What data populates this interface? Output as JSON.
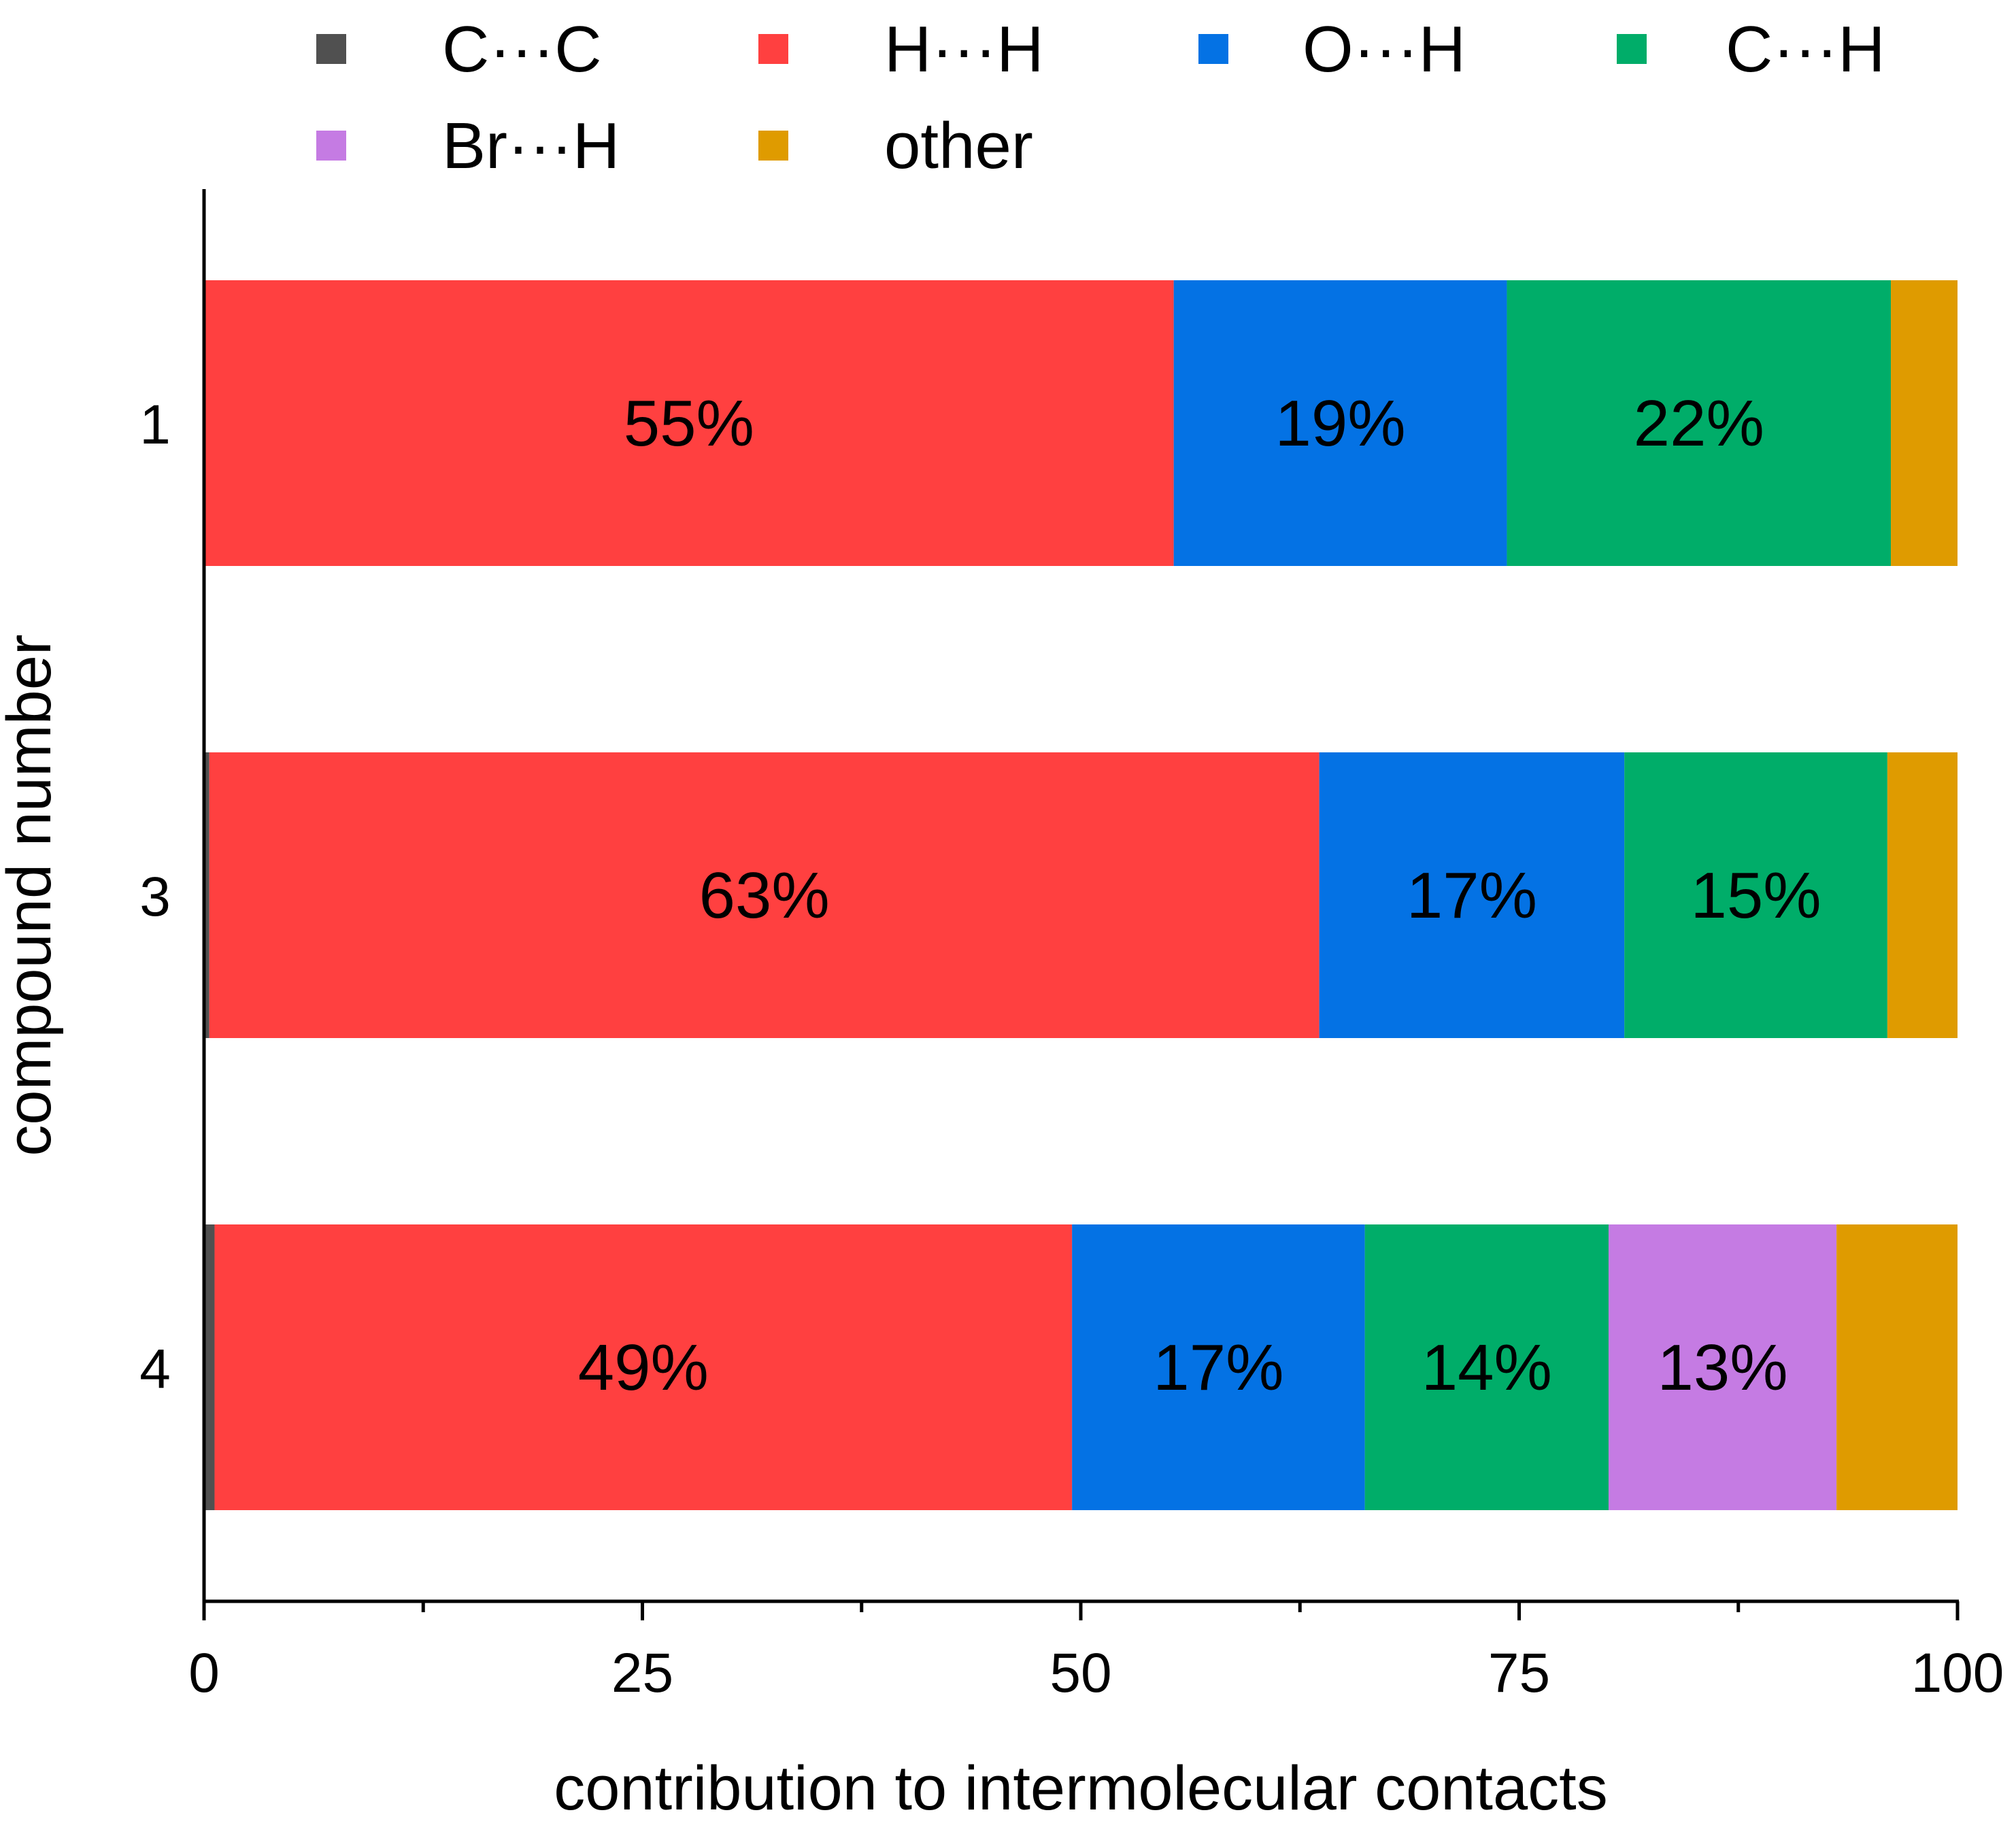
{
  "chart_data": {
    "type": "bar",
    "orientation": "horizontal",
    "stacked": true,
    "title": "",
    "xlabel": "contribution to intermolecular contacts",
    "ylabel": "compound number",
    "xlim": [
      0,
      100
    ],
    "x_ticks": [
      0,
      25,
      50,
      75,
      100
    ],
    "x_tick_labels": [
      "0",
      "25",
      "50",
      "75",
      "100"
    ],
    "x_minor_ticks": [
      12.5,
      37.5,
      62.5,
      87.5
    ],
    "grid": false,
    "legend_position": "top",
    "categories": [
      "1",
      "3",
      "4"
    ],
    "series": [
      {
        "name": "C···C",
        "color": "#505050",
        "label_color": "#ffffff",
        "values": [
          0,
          0.3,
          0.6
        ],
        "labels": [
          "",
          "",
          ""
        ]
      },
      {
        "name": "H···H",
        "color": "#ff4040",
        "label_color": "#ffffff",
        "values": [
          55.3,
          63.3,
          48.9
        ],
        "labels": [
          "55%",
          "63%",
          "49%"
        ]
      },
      {
        "name": "O···H",
        "color": "#0472e4",
        "label_color": "#ffffff",
        "values": [
          19.0,
          17.4,
          16.7
        ],
        "labels": [
          "19%",
          "17%",
          "17%"
        ]
      },
      {
        "name": "C···H",
        "color": "#00ad69",
        "label_color": "#000000",
        "values": [
          21.9,
          15.0,
          13.9
        ],
        "labels": [
          "22%",
          "15%",
          "14%"
        ]
      },
      {
        "name": "Br···H",
        "color": "#c57be3",
        "label_color": "#000000",
        "values": [
          0,
          0,
          13.0
        ],
        "labels": [
          "",
          "",
          "13%"
        ]
      },
      {
        "name": "other",
        "color": "#df9b00",
        "label_color": "#000000",
        "values": [
          3.8,
          4.0,
          6.9
        ],
        "labels": [
          "",
          "",
          ""
        ]
      }
    ]
  }
}
